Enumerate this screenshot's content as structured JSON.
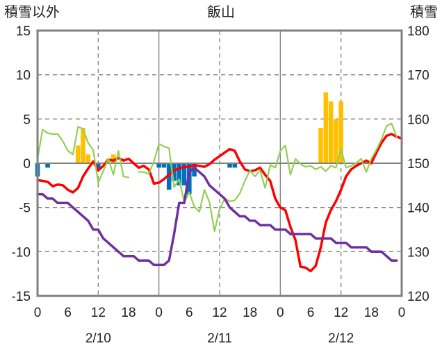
{
  "chart_data": {
    "type": "line",
    "title": "飯山",
    "left_axis_label": "積雪以外",
    "right_axis_label": "積雪",
    "left_ylim": [
      -15,
      15
    ],
    "left_yticks": [
      15,
      10,
      5,
      0,
      -5,
      -10,
      -15
    ],
    "right_ylim": [
      120,
      180
    ],
    "right_yticks": [
      180,
      170,
      160,
      150,
      140,
      130,
      120
    ],
    "x_range_hours": [
      0,
      72
    ],
    "x_tick_labels": [
      "0",
      "6",
      "12",
      "18",
      "0",
      "6",
      "12",
      "18",
      "0",
      "6",
      "12",
      "18",
      "0"
    ],
    "x_tick_hours": [
      0,
      6,
      12,
      18,
      24,
      30,
      36,
      42,
      48,
      54,
      60,
      66,
      72
    ],
    "day_labels": [
      {
        "label": "2/10",
        "center_hour": 12
      },
      {
        "label": "2/11",
        "center_hour": 36
      },
      {
        "label": "2/12",
        "center_hour": 60
      }
    ],
    "grid": {
      "vertical_dashed_hours": [
        12,
        36,
        60
      ],
      "vertical_solid_hours": [
        24,
        48
      ]
    },
    "colors": {
      "temperature": "#ff0000",
      "wind": "#92d050",
      "snow_depth": "#7030a0",
      "precipitation": "#ffc000",
      "sunshine": "#0070c0",
      "zero_line": "#808080",
      "frame": "#808080"
    },
    "series": [
      {
        "key": "temperature",
        "axis": "left",
        "x": [
          0,
          1,
          2,
          3,
          4,
          5,
          6,
          7,
          8,
          9,
          10,
          11,
          12,
          13,
          14,
          15,
          16,
          17,
          18,
          19,
          20,
          21,
          22,
          23,
          24,
          25,
          26,
          27,
          28,
          29,
          30,
          31,
          32,
          33,
          34,
          35,
          36,
          37,
          38,
          39,
          40,
          41,
          42,
          43,
          44,
          45,
          46,
          47,
          48,
          49,
          50,
          51,
          52,
          53,
          54,
          55,
          56,
          57,
          58,
          59,
          60,
          61,
          62,
          63,
          64,
          65,
          66,
          67,
          68,
          69,
          70,
          71,
          72
        ],
        "values": [
          -1.9,
          -2,
          -2.1,
          -2.6,
          -2.4,
          -2.5,
          -3.0,
          -3.3,
          -2.8,
          -1.5,
          -0.6,
          0.2,
          -0.8,
          -0.3,
          0.4,
          0.3,
          0.6,
          0.3,
          0.5,
          0.0,
          -0.5,
          -0.3,
          -0.7,
          -2.3,
          -2.2,
          -1.8,
          -1.3,
          -0.8,
          -0.6,
          -0.4,
          -0.4,
          -0.2,
          -0.3,
          -0.4,
          -0.1,
          0.4,
          0.8,
          1.2,
          1.6,
          1.4,
          0.2,
          -0.7,
          -0.9,
          -0.8,
          -0.5,
          -1.3,
          -2.0,
          -4.0,
          -5.0,
          -5.3,
          -7.2,
          -8.7,
          -11.7,
          -11.8,
          -12.2,
          -11.6,
          -9.5,
          -6.7,
          -5.3,
          -4.3,
          -3.0,
          -1.5,
          -0.7,
          -0.3,
          0.0,
          0.3,
          0.0,
          1.2,
          2.3,
          3.1,
          3.3,
          3.0,
          2.8
        ]
      },
      {
        "key": "wind",
        "axis": "left",
        "x": [
          0,
          1,
          2,
          3,
          4,
          5,
          6,
          7,
          8,
          9,
          10,
          11,
          12,
          13,
          14,
          15,
          16,
          17,
          18,
          19,
          20,
          21,
          22,
          23,
          24,
          25,
          26,
          27,
          28,
          29,
          30,
          31,
          32,
          33,
          34,
          35,
          36,
          37,
          38,
          39,
          40,
          41,
          42,
          43,
          44,
          45,
          46,
          47,
          48,
          49,
          50,
          51,
          52,
          53,
          54,
          55,
          56,
          57,
          58,
          59,
          60,
          61,
          62,
          63,
          64,
          65,
          66,
          67,
          68,
          69,
          70,
          71,
          72
        ],
        "values": [
          0.5,
          3.8,
          3.4,
          3.3,
          3.3,
          2.5,
          1.4,
          1.0,
          4.1,
          3.9,
          2.3,
          1.5,
          -2.2,
          -0.9,
          0.5,
          -1.3,
          1.4,
          -1.5,
          -1.6,
          null,
          -1.0,
          -1.0,
          -1.2,
          0.2,
          2.2,
          1.9,
          1.7,
          -2.7,
          -1.8,
          -4.4,
          -3.3,
          -4.9,
          -5.5,
          -3.0,
          -4.4,
          -7.7,
          -5.2,
          -4.0,
          -4.3,
          -4.2,
          -3.4,
          -2.0,
          -0.8,
          -1.5,
          -0.8,
          -2.8,
          -0.2,
          -0.5,
          1.4,
          2.0,
          -1.3,
          0.5,
          -0.1,
          -0.4,
          -0.3,
          -0.7,
          -0.4,
          -0.9,
          -0.3,
          -0.5,
          1.6,
          -0.5,
          -0.3,
          0.0,
          0.5,
          -1.0,
          0.5,
          1.5,
          2.7,
          4.2,
          4.5,
          3.0,
          null
        ]
      },
      {
        "key": "snow_depth",
        "axis": "right",
        "x": [
          0,
          1,
          2,
          3,
          4,
          5,
          6,
          7,
          8,
          9,
          10,
          11,
          12,
          13,
          14,
          15,
          16,
          17,
          18,
          19,
          20,
          21,
          22,
          23,
          24,
          25,
          26,
          27,
          28,
          29,
          30,
          31,
          32,
          33,
          34,
          35,
          36,
          37,
          38,
          39,
          40,
          41,
          42,
          43,
          44,
          45,
          46,
          47,
          48,
          49,
          50,
          51,
          52,
          53,
          54,
          55,
          56,
          57,
          58,
          59,
          60,
          61,
          62,
          63,
          64,
          65,
          66,
          67,
          68,
          69,
          70,
          71,
          72
        ],
        "values": [
          143,
          143,
          142,
          142,
          141,
          141,
          141,
          140,
          139,
          138,
          137,
          135,
          135,
          133,
          132,
          131,
          130,
          129,
          129,
          129,
          128,
          128,
          128,
          127,
          127,
          127,
          128,
          134,
          141,
          141,
          148,
          149,
          148,
          147,
          145,
          144,
          143,
          142,
          140,
          139,
          138,
          138,
          137,
          137,
          136,
          136,
          136,
          135,
          135,
          135,
          134,
          134,
          134,
          134,
          134,
          133,
          133,
          133,
          133,
          132,
          132,
          132,
          131,
          131,
          131,
          131,
          130,
          130,
          130,
          129,
          128,
          128,
          null
        ]
      },
      {
        "key": "precipitation",
        "type": "bar",
        "axis": "left",
        "x": [
          8,
          9,
          10,
          14,
          15,
          30,
          31,
          32,
          33,
          34,
          35,
          36,
          37,
          38,
          39,
          40,
          41,
          42,
          43,
          44,
          45,
          46,
          47,
          48,
          49,
          50,
          51,
          52,
          53,
          54,
          55,
          56,
          57,
          58,
          59,
          60
        ],
        "values": [
          2,
          4,
          1,
          0.5,
          1,
          0,
          0,
          0,
          0,
          0,
          0,
          0,
          0,
          0,
          0,
          0,
          0,
          0,
          0,
          0,
          0,
          0,
          0,
          0,
          0,
          0,
          0,
          0,
          0,
          0,
          0,
          4,
          8,
          7,
          5,
          7
        ]
      },
      {
        "key": "sunshine",
        "type": "bar",
        "axis": "left",
        "x": [
          0,
          2,
          12,
          24,
          25,
          26,
          27,
          28,
          29,
          30,
          31,
          38,
          39
        ],
        "values": [
          -1.5,
          -0.5,
          -0.8,
          -0.5,
          -0.5,
          -3.0,
          -2.0,
          -2.5,
          -2.5,
          -3.5,
          -1.5,
          -0.5,
          -0.5
        ]
      }
    ]
  }
}
